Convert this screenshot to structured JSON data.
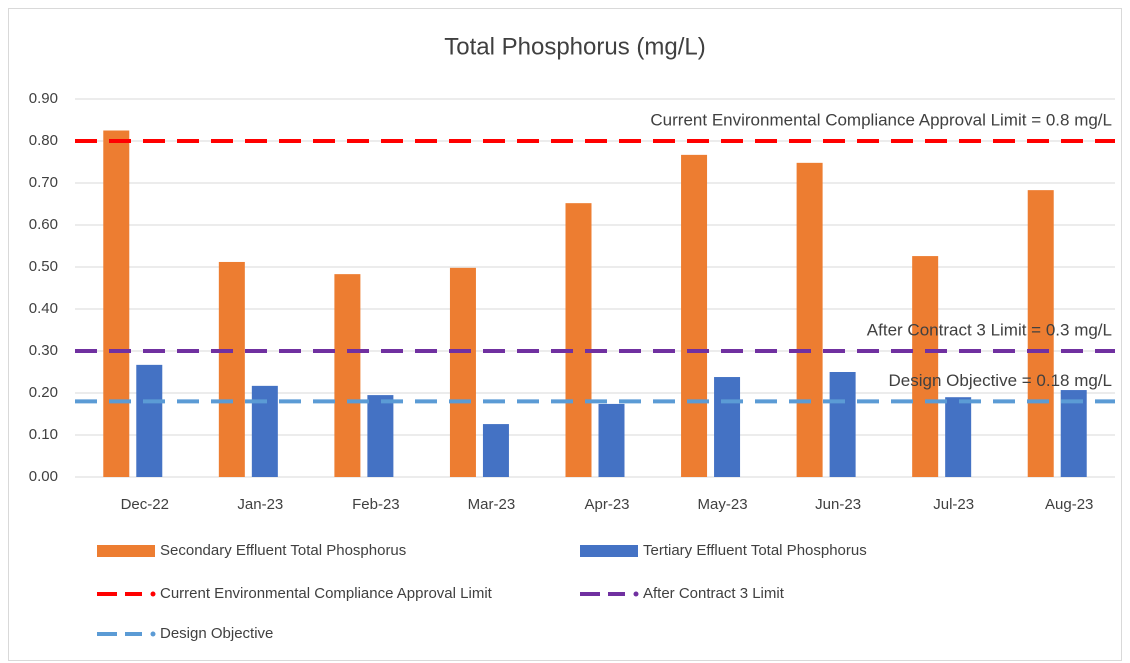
{
  "chart_data": {
    "type": "bar",
    "title": "Total Phosphorus (mg/L)",
    "categories": [
      "Dec-22",
      "Jan-23",
      "Feb-23",
      "Mar-23",
      "Apr-23",
      "May-23",
      "Jun-23",
      "Jul-23",
      "Aug-23"
    ],
    "series": [
      {
        "name": "Secondary Effluent Total Phosphorus",
        "type": "bar",
        "color": "#ed7d31",
        "values": [
          0.825,
          0.512,
          0.483,
          0.498,
          0.652,
          0.767,
          0.748,
          0.526,
          0.683
        ]
      },
      {
        "name": "Tertiary Effluent Total Phosphorus",
        "type": "bar",
        "color": "#4472c4",
        "values": [
          0.267,
          0.217,
          0.195,
          0.126,
          0.174,
          0.238,
          0.25,
          0.19,
          0.207
        ]
      },
      {
        "name": "Current Environmental Compliance Approval Limit",
        "type": "line",
        "color": "#ff0000",
        "values": [
          0.8,
          0.8,
          0.8,
          0.8,
          0.8,
          0.8,
          0.8,
          0.8,
          0.8
        ]
      },
      {
        "name": "After Contract 3 Limit",
        "type": "line",
        "color": "#7030a0",
        "values": [
          0.3,
          0.3,
          0.3,
          0.3,
          0.3,
          0.3,
          0.3,
          0.3,
          0.3
        ]
      },
      {
        "name": "Design Objective",
        "type": "line",
        "color": "#5b9bd5",
        "values": [
          0.18,
          0.18,
          0.18,
          0.18,
          0.18,
          0.18,
          0.18,
          0.18,
          0.18
        ]
      }
    ],
    "annotations": [
      {
        "text": "Current Environmental Compliance Approval Limit = 0.8 mg/L",
        "color": "#ff0000"
      },
      {
        "text": "After Contract 3 Limit = 0.3 mg/L",
        "color": "#7030a0"
      },
      {
        "text": "Design Objective = 0.18 mg/L",
        "color": "#4472c4"
      }
    ],
    "ylim": [
      0,
      0.9
    ],
    "yticks": [
      {
        "value": 0,
        "label": "0.00"
      },
      {
        "value": 0.1,
        "label": "0.10"
      },
      {
        "value": 0.2,
        "label": "0.20"
      },
      {
        "value": 0.3,
        "label": "0.30"
      },
      {
        "value": 0.4,
        "label": "0.40"
      },
      {
        "value": 0.5,
        "label": "0.50"
      },
      {
        "value": 0.6,
        "label": "0.60"
      },
      {
        "value": 0.7,
        "label": "0.70"
      },
      {
        "value": 0.8,
        "label": "0.80"
      },
      {
        "value": 0.9,
        "label": "0.90"
      }
    ],
    "grid": true
  }
}
